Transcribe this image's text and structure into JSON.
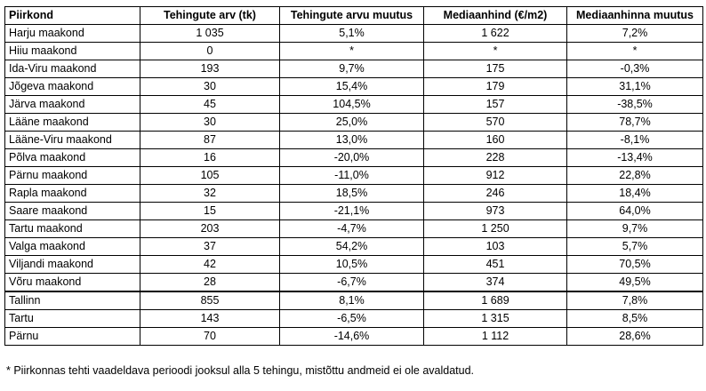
{
  "table": {
    "headers": [
      "Piirkond",
      "Tehingute arv (tk)",
      "Tehingute arvu muutus",
      "Mediaanhind (€/m2)",
      "Mediaanhinna muutus"
    ],
    "counties": [
      [
        "Harju maakond",
        "1 035",
        "5,1%",
        "1 622",
        "7,2%"
      ],
      [
        "Hiiu maakond",
        "0",
        "*",
        "*",
        "*"
      ],
      [
        "Ida-Viru maakond",
        "193",
        "9,7%",
        "175",
        "-0,3%"
      ],
      [
        "Jõgeva maakond",
        "30",
        "15,4%",
        "179",
        "31,1%"
      ],
      [
        "Järva maakond",
        "45",
        "104,5%",
        "157",
        "-38,5%"
      ],
      [
        "Lääne maakond",
        "30",
        "25,0%",
        "570",
        "78,7%"
      ],
      [
        "Lääne-Viru maakond",
        "87",
        "13,0%",
        "160",
        "-8,1%"
      ],
      [
        "Põlva maakond",
        "16",
        "-20,0%",
        "228",
        "-13,4%"
      ],
      [
        "Pärnu maakond",
        "105",
        "-11,0%",
        "912",
        "22,8%"
      ],
      [
        "Rapla maakond",
        "32",
        "18,5%",
        "246",
        "18,4%"
      ],
      [
        "Saare maakond",
        "15",
        "-21,1%",
        "973",
        "64,0%"
      ],
      [
        "Tartu maakond",
        "203",
        "-4,7%",
        "1 250",
        "9,7%"
      ],
      [
        "Valga maakond",
        "37",
        "54,2%",
        "103",
        "5,7%"
      ],
      [
        "Viljandi maakond",
        "42",
        "10,5%",
        "451",
        "70,5%"
      ],
      [
        "Võru maakond",
        "28",
        "-6,7%",
        "374",
        "49,5%"
      ]
    ],
    "cities": [
      [
        "Tallinn",
        "855",
        "8,1%",
        "1 689",
        "7,8%"
      ],
      [
        "Tartu",
        "143",
        "-6,5%",
        "1 315",
        "8,5%"
      ],
      [
        "Pärnu",
        "70",
        "-14,6%",
        "1 112",
        "28,6%"
      ]
    ]
  },
  "footnote": "* Piirkonnas tehti vaadeldava perioodi jooksul alla 5 tehingu, mistõttu andmeid ei ole avaldatud."
}
